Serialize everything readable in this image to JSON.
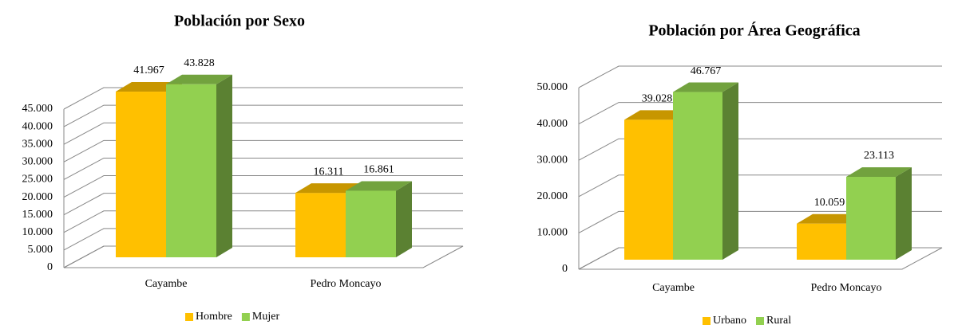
{
  "chart_data": [
    {
      "type": "bar3d",
      "title": "Población por Sexo",
      "categories": [
        "Cayambe",
        "Pedro Moncayo"
      ],
      "series": [
        {
          "name": "Hombre",
          "color": "#ffc000",
          "values": [
            41967,
            16311
          ],
          "value_labels": [
            "41.967",
            "16.311"
          ]
        },
        {
          "name": "Mujer",
          "color": "#92d050",
          "values": [
            43828,
            16861
          ],
          "value_labels": [
            "43.828",
            "16.861"
          ]
        }
      ],
      "ylim": [
        0,
        45000
      ],
      "yticks": [
        0,
        {
          "value": 5000,
          "label": "5.000"
        },
        {
          "value": 10000,
          "label": "10.000"
        },
        {
          "value": 15000,
          "label": "15.000"
        },
        {
          "value": 20000,
          "label": "20.000"
        },
        {
          "value": 25000,
          "label": "25.000"
        },
        {
          "value": 30000,
          "label": "30.000"
        },
        {
          "value": 35000,
          "label": "35.000"
        },
        {
          "value": 40000,
          "label": "40.000"
        },
        {
          "value": 45000,
          "label": "45.000"
        }
      ],
      "grid": true,
      "legend": "bottom"
    },
    {
      "type": "bar3d",
      "title": "Población por Área Geográfica",
      "categories": [
        "Cayambe",
        "Pedro Moncayo"
      ],
      "series": [
        {
          "name": "Urbano",
          "color": "#ffc000",
          "values": [
            39028,
            10059
          ],
          "value_labels": [
            "39.028",
            "10.059"
          ]
        },
        {
          "name": "Rural",
          "color": "#92d050",
          "values": [
            46767,
            23113
          ],
          "value_labels": [
            "46.767",
            "23.113"
          ]
        }
      ],
      "ylim": [
        0,
        50000
      ],
      "yticks": [
        0,
        {
          "value": 10000,
          "label": "10.000"
        },
        {
          "value": 20000,
          "label": "20.000"
        },
        {
          "value": 30000,
          "label": "30.000"
        },
        {
          "value": 40000,
          "label": "40.000"
        },
        {
          "value": 50000,
          "label": "50.000"
        }
      ],
      "grid": true,
      "legend": "bottom"
    }
  ]
}
